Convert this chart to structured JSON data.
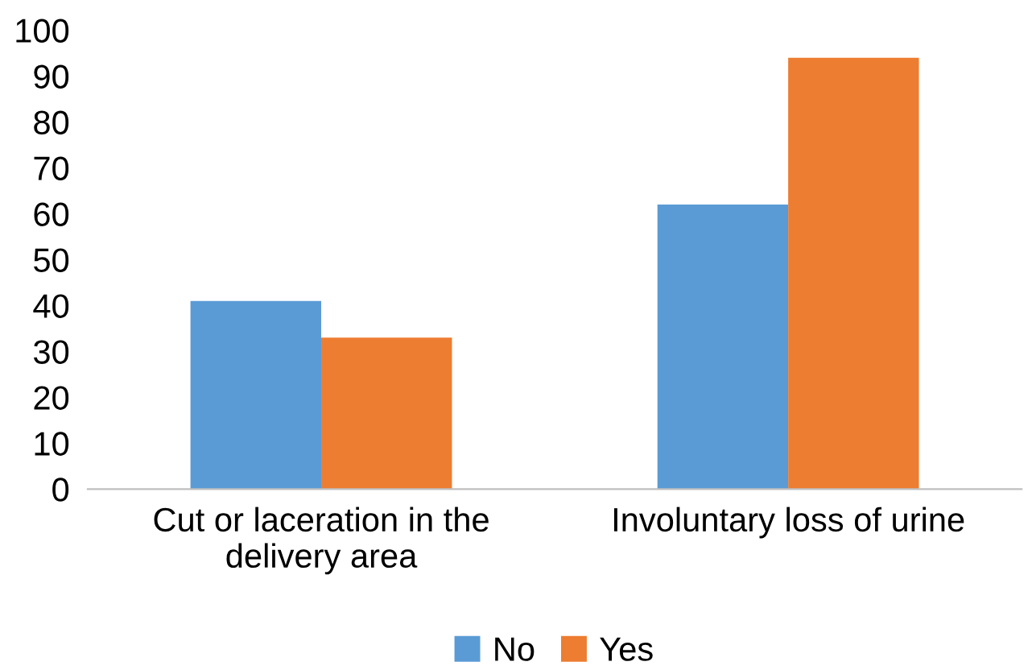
{
  "chart_data": {
    "type": "bar",
    "categories": [
      "Cut or laceration in the\ndelivery area",
      "Involuntary loss of urine"
    ],
    "series": [
      {
        "name": "No",
        "color": "#5b9bd5",
        "values": [
          41,
          62
        ]
      },
      {
        "name": "Yes",
        "color": "#ed7d31",
        "values": [
          33,
          94
        ]
      }
    ],
    "ylim": [
      0,
      100
    ],
    "yticks": [
      0,
      10,
      20,
      30,
      40,
      50,
      60,
      70,
      80,
      90,
      100
    ],
    "grid": false,
    "legend": "bottom"
  }
}
